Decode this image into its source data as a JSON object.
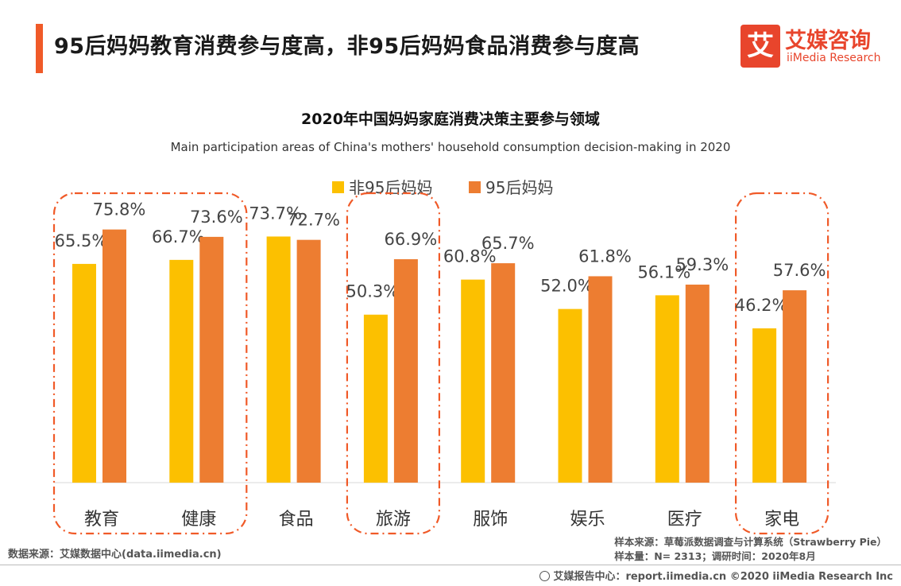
{
  "headline": "95后妈妈教育消费参与度高，非95后妈妈食品消费参与度高",
  "logo": {
    "mark": "艾",
    "name_cn": "艾媒咨询",
    "name_en": "iiMedia Research"
  },
  "footer": {
    "source": "数据来源：艾媒数据中心(data.iimedia.cn)",
    "sample_source": "样本来源：草莓派数据调查与计算系统（Strawberry  Pie）",
    "sample_info": "样本量：N= 2313；调研时间：2020年8月",
    "copyright": "艾媒报告中心：report.iimedia.cn   ©2020  iiMedia Research  Inc"
  },
  "chart_data": {
    "type": "bar",
    "title": "2020年中国妈妈家庭消费决策主要参与领域",
    "subtitle": "Main participation areas of China's mothers' household consumption decision-making in 2020",
    "categories": [
      "教育",
      "健康",
      "食品",
      "旅游",
      "服饰",
      "娱乐",
      "医疗",
      "家电"
    ],
    "series": [
      {
        "name": "非95后妈妈",
        "color": "#fcc000",
        "values": [
          65.5,
          66.7,
          73.7,
          50.3,
          60.8,
          52.0,
          56.1,
          46.2
        ]
      },
      {
        "name": "95后妈妈",
        "color": "#ed7d31",
        "values": [
          75.8,
          73.6,
          72.7,
          66.9,
          65.7,
          61.8,
          59.3,
          57.6
        ]
      }
    ],
    "value_suffix": "%",
    "ylim": [
      0,
      100
    ],
    "legend_position": "top-center",
    "grid": false,
    "highlight_groups": [
      [
        "教育",
        "健康"
      ],
      [
        "旅游"
      ],
      [
        "家电"
      ]
    ],
    "highlight_color": "#f05a28"
  }
}
